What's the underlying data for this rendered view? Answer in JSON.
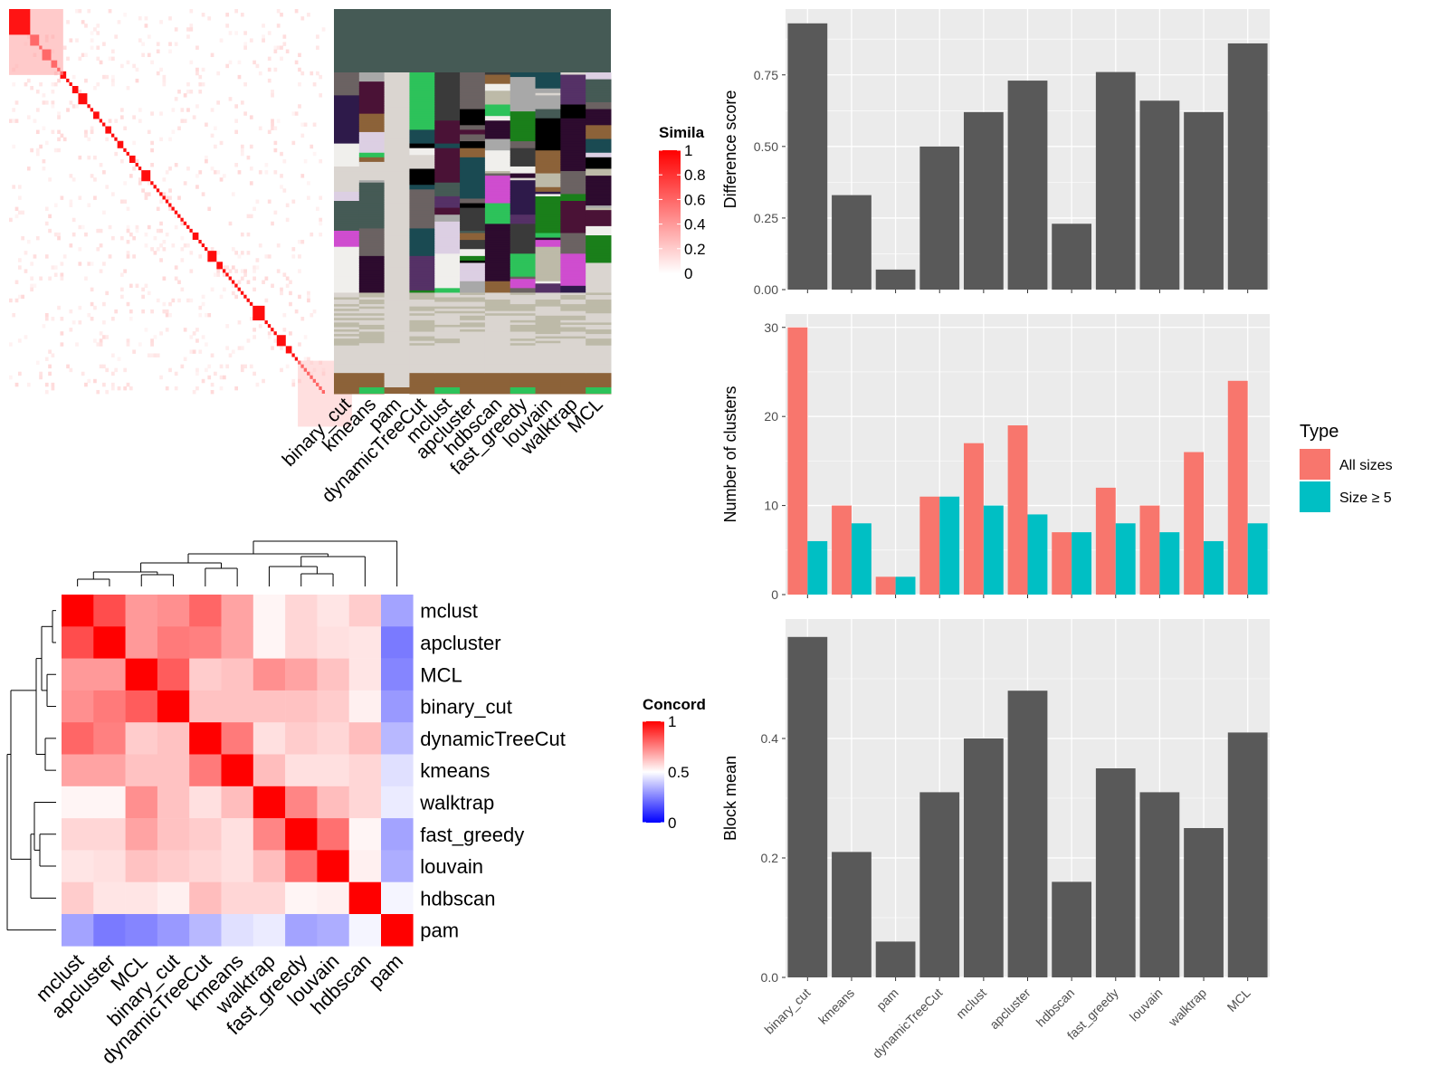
{
  "methods_order": [
    "binary_cut",
    "kmeans",
    "pam",
    "dynamicTreeCut",
    "mclust",
    "apcluster",
    "hdbscan",
    "fast_greedy",
    "louvain",
    "walktrap",
    "MCL"
  ],
  "colors": {
    "bar_gray": "#595959",
    "panel_bg": "#EBEBEB",
    "grid": "#FFFFFF",
    "all_sizes": "#F8766D",
    "size_ge5": "#00BFC4",
    "heat_high": "#FF0000",
    "heat_mid": "#FFFFFF",
    "heat_low": "#0000FF",
    "dendro_line": "#000000"
  },
  "similarity_heatmap": {
    "legend_title": "Simila",
    "legend_ticks": [
      "1",
      "0.8",
      "0.6",
      "0.4",
      "0.2",
      "0"
    ],
    "block_sizes": [
      7,
      3,
      1,
      3,
      2,
      1,
      2,
      1,
      1,
      2,
      3,
      1,
      1,
      2,
      1,
      1,
      2,
      1,
      1,
      2,
      1,
      1,
      2,
      1,
      1,
      3,
      1,
      1,
      1,
      1,
      1,
      1,
      1,
      1,
      1,
      1,
      1,
      1,
      1,
      1,
      2,
      1,
      1,
      1,
      3,
      2,
      1,
      1,
      1,
      1,
      1,
      1,
      1,
      1,
      1,
      1,
      4,
      1,
      1,
      1,
      1,
      3,
      2,
      1,
      1,
      1,
      1,
      1,
      1,
      1,
      1,
      1,
      1,
      1
    ]
  },
  "cluster_labels_panel": {
    "column_labels": [
      "binary_cut",
      "kmeans",
      "pam",
      "dynamicTreeCut",
      "mclust",
      "apcluster",
      "hdbscan",
      "fast_greedy",
      "louvain",
      "walktrap",
      "MCL"
    ]
  },
  "concordance_heatmap": {
    "legend_title": "Concord",
    "legend_ticks": [
      "1",
      "0.5",
      "0"
    ],
    "labels": [
      "mclust",
      "apcluster",
      "MCL",
      "binary_cut",
      "dynamicTreeCut",
      "kmeans",
      "walktrap",
      "fast_greedy",
      "louvain",
      "hdbscan",
      "pam"
    ],
    "matrix": [
      [
        1.0,
        0.85,
        0.7,
        0.72,
        0.8,
        0.68,
        0.52,
        0.58,
        0.55,
        0.6,
        0.32
      ],
      [
        0.85,
        1.0,
        0.7,
        0.76,
        0.75,
        0.68,
        0.52,
        0.58,
        0.56,
        0.55,
        0.24
      ],
      [
        0.7,
        0.7,
        1.0,
        0.82,
        0.6,
        0.62,
        0.72,
        0.68,
        0.62,
        0.55,
        0.26
      ],
      [
        0.72,
        0.76,
        0.82,
        1.0,
        0.62,
        0.62,
        0.62,
        0.62,
        0.6,
        0.53,
        0.3
      ],
      [
        0.8,
        0.75,
        0.6,
        0.62,
        1.0,
        0.76,
        0.56,
        0.6,
        0.58,
        0.63,
        0.36
      ],
      [
        0.68,
        0.68,
        0.62,
        0.62,
        0.76,
        1.0,
        0.63,
        0.56,
        0.56,
        0.58,
        0.44
      ],
      [
        0.52,
        0.52,
        0.72,
        0.62,
        0.56,
        0.63,
        1.0,
        0.74,
        0.63,
        0.58,
        0.46
      ],
      [
        0.58,
        0.58,
        0.68,
        0.62,
        0.6,
        0.56,
        0.74,
        1.0,
        0.78,
        0.52,
        0.32
      ],
      [
        0.55,
        0.56,
        0.62,
        0.6,
        0.58,
        0.56,
        0.63,
        0.78,
        1.0,
        0.53,
        0.34
      ],
      [
        0.6,
        0.55,
        0.55,
        0.53,
        0.63,
        0.58,
        0.58,
        0.52,
        0.53,
        1.0,
        0.48
      ],
      [
        0.32,
        0.24,
        0.26,
        0.3,
        0.36,
        0.44,
        0.46,
        0.32,
        0.34,
        0.48,
        1.0
      ]
    ]
  },
  "chart_data": [
    {
      "type": "bar",
      "categories": [
        "binary_cut",
        "kmeans",
        "pam",
        "dynamicTreeCut",
        "mclust",
        "apcluster",
        "hdbscan",
        "fast_greedy",
        "louvain",
        "walktrap",
        "MCL"
      ],
      "values": [
        0.93,
        0.33,
        0.07,
        0.5,
        0.62,
        0.73,
        0.23,
        0.76,
        0.66,
        0.62,
        0.86
      ],
      "xlabel": "",
      "ylabel": "Difference score",
      "ylim": [
        0,
        0.98
      ],
      "yticks": [
        0.0,
        0.25,
        0.5,
        0.75
      ],
      "ytick_labels": [
        "0.00",
        "0.25",
        "0.50",
        "0.75"
      ]
    },
    {
      "type": "bar",
      "categories": [
        "binary_cut",
        "kmeans",
        "pam",
        "dynamicTreeCut",
        "mclust",
        "apcluster",
        "hdbscan",
        "fast_greedy",
        "louvain",
        "walktrap",
        "MCL"
      ],
      "series": [
        {
          "name": "All sizes",
          "values": [
            30,
            10,
            2,
            11,
            17,
            19,
            7,
            12,
            10,
            16,
            24
          ]
        },
        {
          "name": "Size ≥ 5",
          "values": [
            6,
            8,
            2,
            11,
            10,
            9,
            7,
            8,
            7,
            6,
            8
          ]
        }
      ],
      "xlabel": "",
      "ylabel": "Number of clusters",
      "ylim": [
        0,
        31.5
      ],
      "yticks": [
        0,
        10,
        20,
        30
      ],
      "ytick_labels": [
        "0",
        "10",
        "20",
        "30"
      ],
      "legend_title": "Type",
      "legend_position": "right"
    },
    {
      "type": "bar",
      "categories": [
        "binary_cut",
        "kmeans",
        "pam",
        "dynamicTreeCut",
        "mclust",
        "apcluster",
        "hdbscan",
        "fast_greedy",
        "louvain",
        "walktrap",
        "MCL"
      ],
      "values": [
        0.57,
        0.21,
        0.06,
        0.31,
        0.4,
        0.48,
        0.16,
        0.35,
        0.31,
        0.25,
        0.41
      ],
      "xlabel": "",
      "ylabel": "Block mean",
      "ylim": [
        0,
        0.6
      ],
      "yticks": [
        0.0,
        0.2,
        0.4
      ],
      "ytick_labels": [
        "0.0",
        "0.2",
        "0.4"
      ]
    }
  ]
}
